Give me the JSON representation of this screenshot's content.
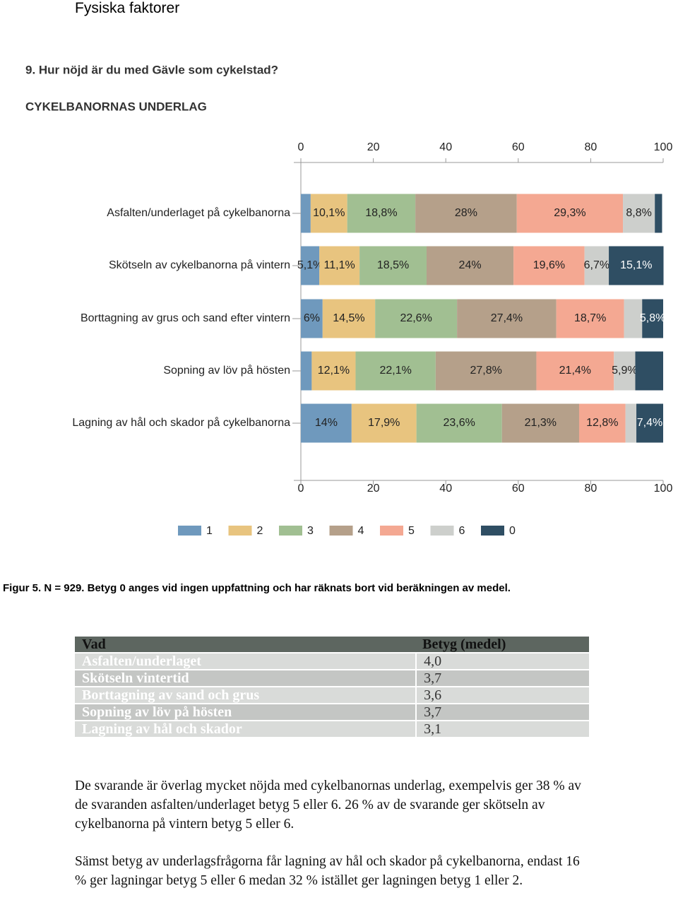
{
  "header": {
    "title": "Fysiska faktorer"
  },
  "chart_data": {
    "type": "stacked-barh",
    "title": "9. Hur nöjd är du med Gävle som cykelstad?",
    "subtitle": "CYKELBANORNAS UNDERLAG",
    "categories": [
      "Asfalten/underlaget på cykelbanorna",
      "Skötseln av cykelbanorna på vintern",
      "Borttagning av grus och sand efter vintern",
      "Sopning av löv på hösten",
      "Lagning av hål och skador på cykelbanorna"
    ],
    "series": [
      {
        "name": "1",
        "color": "#6f99bd",
        "values": [
          2.7,
          5.1,
          6,
          3.0,
          14
        ],
        "value_labels": [
          null,
          "5,1%",
          "6%",
          null,
          "14%"
        ]
      },
      {
        "name": "2",
        "color": "#e8c47f",
        "values": [
          10.1,
          11.1,
          14.5,
          12.1,
          17.9
        ],
        "value_labels": [
          "10,1%",
          "11,1%",
          "14,5%",
          "12,1%",
          "17,9%"
        ]
      },
      {
        "name": "3",
        "color": "#a1bf92",
        "values": [
          18.8,
          18.5,
          22.6,
          22.1,
          23.6
        ],
        "value_labels": [
          "18,8%",
          "18,5%",
          "22,6%",
          "22,1%",
          "23,6%"
        ]
      },
      {
        "name": "4",
        "color": "#b5a08a",
        "values": [
          28,
          24,
          27.4,
          27.8,
          21.3
        ],
        "value_labels": [
          "28%",
          "24%",
          "27,4%",
          "27,8%",
          "21,3%"
        ]
      },
      {
        "name": "5",
        "color": "#f4a892",
        "values": [
          29.3,
          19.6,
          18.7,
          21.4,
          12.8
        ],
        "value_labels": [
          "29,3%",
          "19,6%",
          "18,7%",
          "21,4%",
          "12,8%"
        ]
      },
      {
        "name": "6",
        "color": "#cdcfcc",
        "values": [
          8.8,
          6.7,
          5.0,
          5.9,
          3.0
        ],
        "value_labels": [
          "8,8%",
          "6,7%",
          null,
          "5,9%",
          null
        ]
      },
      {
        "name": "0",
        "color": "#2f4e63",
        "values": [
          2.0,
          15.1,
          5.8,
          7.7,
          7.4
        ],
        "value_labels": [
          null,
          "15,1%",
          "5,8%",
          null,
          "7,4%"
        ]
      }
    ],
    "xlim": [
      0,
      100
    ],
    "xticks": [
      0,
      20,
      40,
      60,
      80,
      100
    ],
    "legend": "bottom"
  },
  "caption": "Figur 5. N = 929. Betyg 0 anges vid ingen uppfattning och har räknats bort vid beräkningen av medel.",
  "table": {
    "header": [
      "Vad",
      "Betyg (medel)"
    ],
    "rows": [
      [
        "Asfalten/underlaget",
        "4,0"
      ],
      [
        "Skötseln vintertid",
        "3,7"
      ],
      [
        "Borttagning av sand och grus",
        "3,6"
      ],
      [
        "Sopning av löv på hösten",
        "3,7"
      ],
      [
        "Lagning av hål och skador",
        "3,1"
      ]
    ]
  },
  "paragraphs": [
    "De svarande är överlag mycket nöjda med cykelbanornas underlag, exempelvis ger 38 % av de svaranden asfalten/underlaget betyg 5 eller 6. 26 % av de svarande ger skötseln av cykelbanorna på vintern betyg 5 eller 6.",
    "Sämst betyg av underlagsfrågorna får lagning av hål och skador på cykelbanorna, endast 16 % ger lagningar betyg 5 eller 6 medan 32 % istället ger lagningen betyg 1 eller 2."
  ]
}
